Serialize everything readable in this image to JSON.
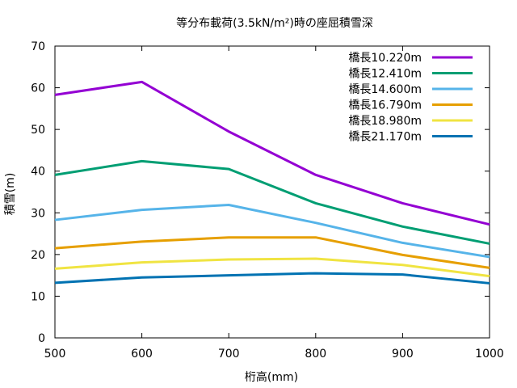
{
  "chart_data": {
    "type": "line",
    "title": "等分布載荷(3.5kN/m²)時の座屈積雪深",
    "xlabel": "桁高(mm)",
    "ylabel": "積雪(m)",
    "xlim": [
      500,
      1000
    ],
    "ylim": [
      0,
      70
    ],
    "xticks": [
      500,
      600,
      700,
      800,
      900,
      1000
    ],
    "yticks": [
      0,
      10,
      20,
      30,
      40,
      50,
      60,
      70
    ],
    "grid": false,
    "legend_position": "top-right",
    "x": [
      500,
      600,
      700,
      800,
      900,
      1000
    ],
    "series": [
      {
        "name": "橋長10.220m",
        "color": "#9400d3",
        "values": [
          58.3,
          61.4,
          49.5,
          39.1,
          32.3,
          27.2
        ]
      },
      {
        "name": "橋長12.410m",
        "color": "#009e73",
        "values": [
          39.1,
          42.4,
          40.5,
          32.3,
          26.7,
          22.6
        ]
      },
      {
        "name": "橋長14.600m",
        "color": "#56b4e9",
        "values": [
          28.3,
          30.7,
          31.9,
          27.6,
          22.8,
          19.4
        ]
      },
      {
        "name": "橋長16.790m",
        "color": "#e69f00",
        "values": [
          21.5,
          23.1,
          24.1,
          24.1,
          19.9,
          16.8
        ]
      },
      {
        "name": "橋長18.980m",
        "color": "#f0e442",
        "values": [
          16.6,
          18.1,
          18.8,
          19.0,
          17.5,
          14.8
        ]
      },
      {
        "name": "橋長21.170m",
        "color": "#0072b2",
        "values": [
          13.2,
          14.5,
          15.0,
          15.5,
          15.2,
          13.1
        ]
      }
    ]
  }
}
